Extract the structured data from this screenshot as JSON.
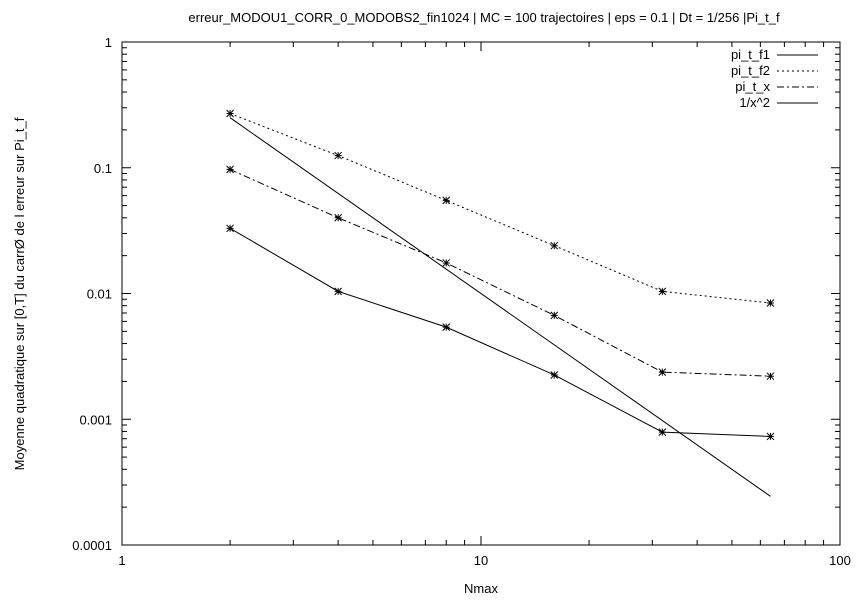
{
  "chart_data": {
    "type": "line",
    "title": "erreur_MODOU1_CORR_0_MODOBS2_fin1024 | MC = 100 trajectoires | eps = 0.1 | Dt = 1/256 |Pi_t_f",
    "xlabel": "Nmax",
    "ylabel": "Moyenne quadratique sur [0,T] du carrØ de l erreur sur Pi_t_f",
    "x_scale": "log",
    "y_scale": "log",
    "xlim": [
      1,
      100
    ],
    "ylim": [
      0.0001,
      1
    ],
    "x_ticks": [
      {
        "value": 1,
        "label": "1"
      },
      {
        "value": 10,
        "label": "10"
      },
      {
        "value": 100,
        "label": "100"
      }
    ],
    "y_ticks": [
      {
        "value": 0.0001,
        "label": "0.0001"
      },
      {
        "value": 0.001,
        "label": "0.001"
      },
      {
        "value": 0.01,
        "label": "0.01"
      },
      {
        "value": 0.1,
        "label": "0.1"
      },
      {
        "value": 1,
        "label": "1"
      }
    ],
    "grid": false,
    "legend_position": "top-right",
    "series": [
      {
        "name": "pi_t_f1",
        "style": "solid",
        "marker": "star",
        "x": [
          2,
          4,
          8,
          16,
          32,
          64
        ],
        "y": [
          0.033,
          0.0104,
          0.0054,
          0.00225,
          0.00079,
          0.00073
        ]
      },
      {
        "name": "pi_t_f2",
        "style": "dotted",
        "marker": "star",
        "x": [
          2,
          4,
          8,
          16,
          32,
          64
        ],
        "y": [
          0.27,
          0.125,
          0.055,
          0.024,
          0.0104,
          0.0084
        ]
      },
      {
        "name": "pi_t_x",
        "style": "dashdot",
        "marker": "star",
        "x": [
          2,
          4,
          8,
          16,
          32,
          64
        ],
        "y": [
          0.097,
          0.04,
          0.0175,
          0.0067,
          0.00237,
          0.0022
        ]
      },
      {
        "name": "1/x^2",
        "style": "solid",
        "marker": "none",
        "x": [
          2,
          64
        ],
        "y": [
          0.25,
          0.000244
        ]
      }
    ]
  }
}
